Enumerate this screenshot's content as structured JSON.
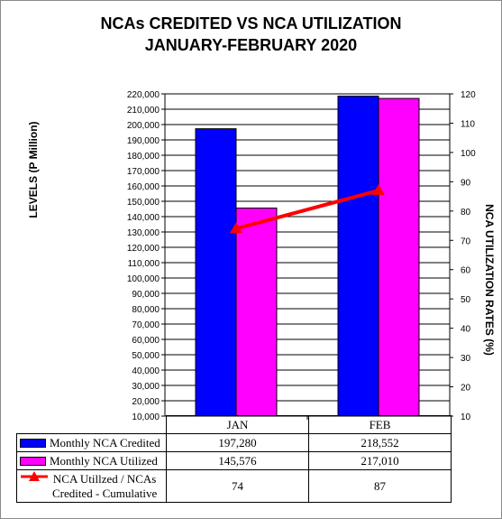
{
  "title_line1": "NCAs CREDITED VS NCA UTILIZATION",
  "title_line2": "JANUARY-FEBRUARY 2020",
  "ylabel_left": "LEVELS (P Million)",
  "ylabel_right": "NCA UTILIZATION RATES (%)",
  "colors": {
    "credited": "#0000ff",
    "utilized": "#ff00ff",
    "rate_line": "#ff0000",
    "plot_bg": "#ffffff",
    "grid": "#000000"
  },
  "chart_data": {
    "type": "bar",
    "categories": [
      "JAN",
      "FEB"
    ],
    "series": [
      {
        "name": "Monthly NCA Credited",
        "axis": "left",
        "values": [
          197280,
          218552
        ],
        "display": [
          "197,280",
          "218,552"
        ]
      },
      {
        "name": "Monthly NCA Utilized",
        "axis": "left",
        "values": [
          145576,
          217010
        ],
        "display": [
          "145,576",
          "217,010"
        ]
      },
      {
        "name": "NCA Utillzed / NCAs Credited - Cumulative",
        "type": "line",
        "axis": "right",
        "values": [
          74,
          87
        ],
        "display": [
          "74",
          "87"
        ]
      }
    ],
    "ylim_left": [
      10000,
      220000
    ],
    "ylim_right": [
      10,
      120
    ],
    "yticks_left": [
      "10,000",
      "20,000",
      "30,000",
      "40,000",
      "50,000",
      "60,000",
      "70,000",
      "80,000",
      "90,000",
      "100,000",
      "110,000",
      "120,000",
      "130,000",
      "140,000",
      "150,000",
      "160,000",
      "170,000",
      "180,000",
      "190,000",
      "200,000",
      "210,000",
      "220,000"
    ],
    "yticks_right": [
      "10",
      "20",
      "30",
      "40",
      "50",
      "60",
      "70",
      "80",
      "90",
      "100",
      "110",
      "120"
    ],
    "grid": true
  },
  "table": {
    "row1_label": "Monthly NCA Credited",
    "row2_label": "Monthly NCA Utilized",
    "row3_label_line1": "NCA Utillzed / NCAs",
    "row3_label_line2": "Credited - Cumulative"
  }
}
